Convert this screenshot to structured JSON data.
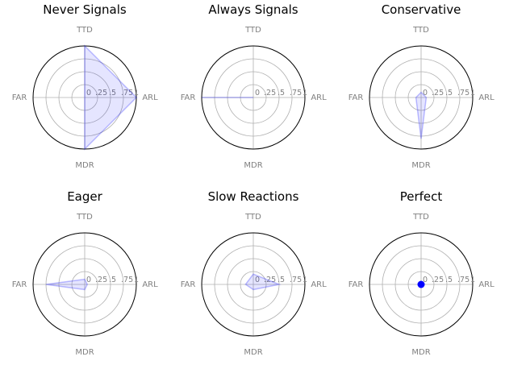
{
  "figure": {
    "axes_labels": [
      "TTD",
      "ARL",
      "MDR",
      "FAR"
    ],
    "radial_ticks": [
      "0",
      ".25",
      ".5",
      ".75",
      "1"
    ],
    "rlim": [
      0,
      1
    ],
    "colors": {
      "fill": "#0000ff",
      "fill_alpha": 0.1,
      "line_alpha": 0.25,
      "grid": "#b0b0b0",
      "outline": "#000000",
      "label": "#808080"
    }
  },
  "chart_data": [
    {
      "type": "radar",
      "title": "Never Signals",
      "axes": [
        "TTD",
        "ARL",
        "MDR",
        "FAR"
      ],
      "values": [
        1.0,
        1.0,
        1.0,
        0.0
      ]
    },
    {
      "type": "radar",
      "title": "Always Signals",
      "axes": [
        "TTD",
        "ARL",
        "MDR",
        "FAR"
      ],
      "values": [
        0.0,
        0.0,
        0.0,
        1.0
      ]
    },
    {
      "type": "radar",
      "title": "Conservative",
      "axes": [
        "TTD",
        "ARL",
        "MDR",
        "FAR"
      ],
      "values": [
        0.1,
        0.1,
        0.8,
        0.1
      ]
    },
    {
      "type": "radar",
      "title": "Eager",
      "axes": [
        "TTD",
        "ARL",
        "MDR",
        "FAR"
      ],
      "values": [
        0.1,
        0.05,
        0.1,
        0.75
      ]
    },
    {
      "type": "radar",
      "title": "Slow Reactions",
      "axes": [
        "TTD",
        "ARL",
        "MDR",
        "FAR"
      ],
      "values": [
        0.2,
        0.5,
        0.1,
        0.15
      ]
    },
    {
      "type": "radar",
      "title": "Perfect",
      "axes": [
        "TTD",
        "ARL",
        "MDR",
        "FAR"
      ],
      "values": [
        0.0,
        0.0,
        0.0,
        0.0
      ],
      "marker": "point"
    }
  ]
}
